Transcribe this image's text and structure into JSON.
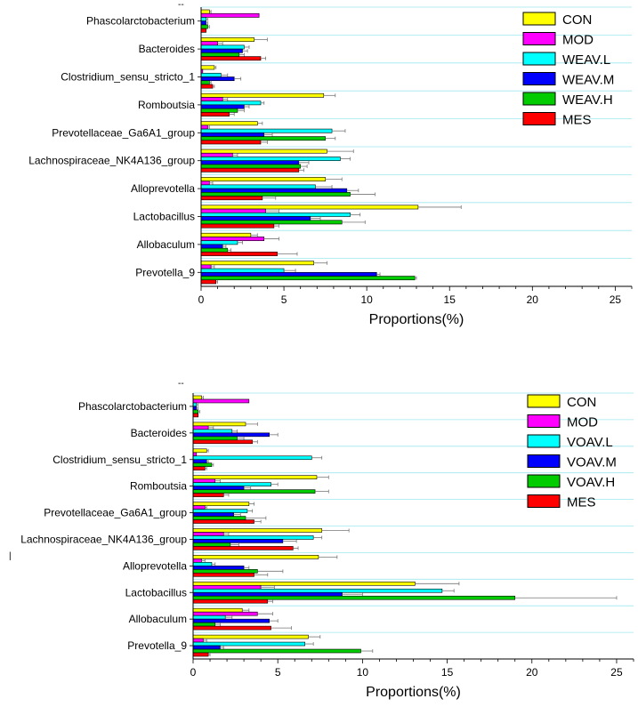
{
  "chart_data": [
    {
      "type": "bar",
      "orientation": "horizontal",
      "xlabel": "Proportions(%)",
      "xlim": [
        0,
        26
      ],
      "xticks": [
        0,
        5,
        10,
        15,
        20,
        25
      ],
      "categories": [
        "Phascolarctobacterium",
        "Bacteroides",
        "Clostridium_sensu_stricto_1",
        "Romboutsia",
        "Prevotellaceae_Ga6A1_group",
        "Lachnospiraceae_NK4A136_group",
        "Alloprevotella",
        "Lactobacillus",
        "Allobaculum",
        "Prevotella_9"
      ],
      "series": [
        {
          "name": "CON",
          "color": "#ffff00",
          "values": [
            0.5,
            3.2,
            0.8,
            7.4,
            3.4,
            7.6,
            7.5,
            13.1,
            3.0,
            6.8
          ],
          "errors": [
            0.1,
            0.8,
            0.1,
            0.7,
            0.3,
            1.6,
            1.0,
            2.6,
            0.4,
            0.8
          ]
        },
        {
          "name": "MOD",
          "color": "#ff00ff",
          "values": [
            3.5,
            1.0,
            0.1,
            1.3,
            0.4,
            1.9,
            0.5,
            3.9,
            3.8,
            0.6
          ],
          "errors": [
            0.0,
            0.3,
            0.0,
            0.3,
            0.1,
            0.3,
            0.2,
            0.8,
            0.9,
            0.2
          ]
        },
        {
          "name": "WEAV.L",
          "color": "#00ffff",
          "values": [
            0.3,
            2.6,
            1.2,
            3.6,
            7.9,
            8.4,
            6.9,
            9.0,
            2.2,
            5.0
          ],
          "errors": [
            0.1,
            0.3,
            0.4,
            0.2,
            0.8,
            0.6,
            1.0,
            0.6,
            0.3,
            0.7
          ]
        },
        {
          "name": "WEAV.M",
          "color": "#0000ff",
          "values": [
            0.3,
            2.5,
            2.0,
            2.6,
            3.8,
            5.9,
            8.8,
            6.6,
            1.3,
            10.6
          ],
          "errors": [
            0.1,
            0.3,
            0.4,
            0.3,
            0.5,
            0.6,
            0.7,
            0.6,
            0.2,
            0.2
          ]
        },
        {
          "name": "WEAV.H",
          "color": "#00cc00",
          "values": [
            0.4,
            2.3,
            0.5,
            2.2,
            7.5,
            6.0,
            9.0,
            8.5,
            1.6,
            12.9
          ],
          "errors": [
            0.1,
            0.3,
            0.1,
            0.4,
            0.6,
            0.4,
            1.5,
            1.4,
            0.2,
            0.1
          ]
        },
        {
          "name": "MES",
          "color": "#ff0000",
          "values": [
            0.3,
            3.6,
            0.7,
            1.7,
            3.6,
            5.9,
            3.7,
            4.4,
            4.6,
            0.9
          ],
          "errors": [
            0.0,
            0.3,
            0.1,
            0.3,
            0.4,
            0.3,
            0.8,
            0.3,
            1.2,
            0.1
          ]
        }
      ]
    },
    {
      "type": "bar",
      "orientation": "horizontal",
      "xlabel": "Proportions(%)",
      "xlim": [
        0,
        26
      ],
      "xticks": [
        0,
        5,
        10,
        15,
        20,
        25
      ],
      "categories": [
        "Phascolarctobacterium",
        "Bacteroides",
        "Clostridium_sensu_stricto_1",
        "Romboutsia",
        "Prevotellaceae_Ga6A1_group",
        "Lachnospiraceae_NK4A136_group",
        "Alloprevotella",
        "Lactobacillus",
        "Allobaculum",
        "Prevotella_9"
      ],
      "series": [
        {
          "name": "CON",
          "color": "#ffff00",
          "values": [
            0.5,
            3.1,
            0.8,
            7.3,
            3.3,
            7.6,
            7.4,
            13.1,
            2.9,
            6.8
          ],
          "errors": [
            0.1,
            0.7,
            0.1,
            0.7,
            0.3,
            1.6,
            1.1,
            2.6,
            0.4,
            0.7
          ]
        },
        {
          "name": "MOD",
          "color": "#ff00ff",
          "values": [
            3.3,
            0.9,
            0.2,
            1.3,
            0.7,
            1.8,
            0.5,
            4.0,
            3.8,
            0.6
          ],
          "errors": [
            0.0,
            0.3,
            0.0,
            0.3,
            0.1,
            0.3,
            0.2,
            0.8,
            0.9,
            0.2
          ]
        },
        {
          "name": "VOAV.L",
          "color": "#00ffff",
          "values": [
            0.2,
            2.3,
            7.0,
            4.6,
            3.2,
            7.1,
            1.1,
            14.7,
            1.9,
            6.6
          ],
          "errors": [
            0.1,
            0.3,
            0.6,
            0.4,
            0.3,
            0.5,
            0.2,
            0.7,
            0.4,
            0.5
          ]
        },
        {
          "name": "VOAV.M",
          "color": "#0000ff",
          "values": [
            0.2,
            4.5,
            0.8,
            3.0,
            2.4,
            5.3,
            3.0,
            8.8,
            4.5,
            1.6
          ],
          "errors": [
            0.1,
            0.5,
            0.1,
            0.4,
            0.4,
            0.8,
            0.3,
            1.2,
            0.5,
            0.2
          ]
        },
        {
          "name": "VOAV.H",
          "color": "#00cc00",
          "values": [
            0.3,
            2.6,
            1.1,
            7.2,
            3.1,
            2.2,
            3.8,
            19.0,
            1.3,
            9.9
          ],
          "errors": [
            0.1,
            0.4,
            0.1,
            0.8,
            1.2,
            0.5,
            1.5,
            6.0,
            0.3,
            0.7
          ]
        },
        {
          "name": "MES",
          "color": "#ff0000",
          "values": [
            0.3,
            3.5,
            0.7,
            1.8,
            3.6,
            5.9,
            3.6,
            4.4,
            4.6,
            0.9
          ],
          "errors": [
            0.0,
            0.3,
            0.1,
            0.3,
            0.4,
            0.3,
            0.8,
            0.3,
            1.2,
            0.1
          ]
        }
      ]
    }
  ]
}
